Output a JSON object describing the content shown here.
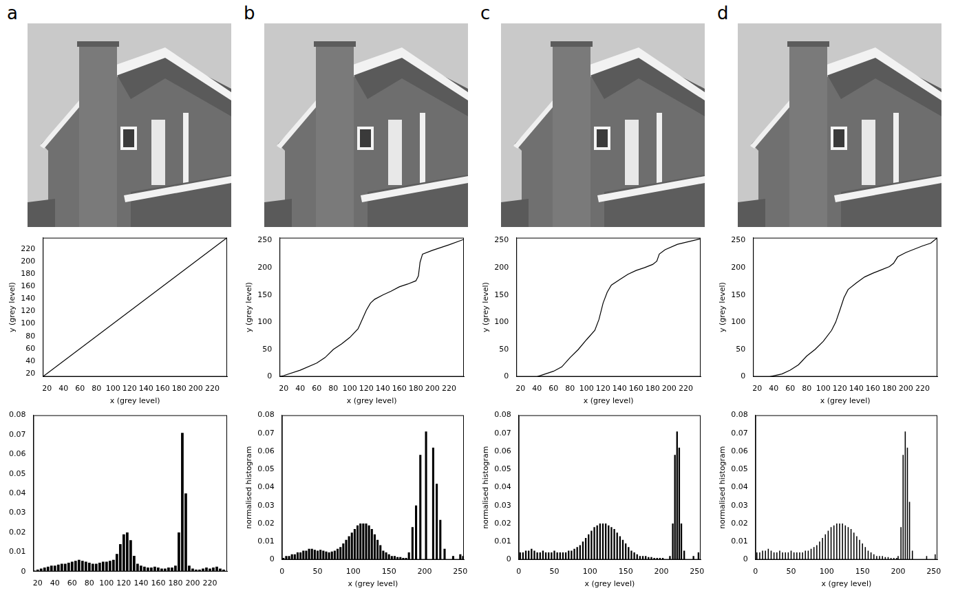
{
  "panel_letters": [
    "a",
    "b",
    "c",
    "d"
  ],
  "chart_data": [
    {
      "type": "line",
      "x": [
        15,
        238
      ],
      "values": [
        15,
        238
      ],
      "color": "#000000",
      "grid": false,
      "x_label": "x (grey level)",
      "y_label": "y (grey level)",
      "xlim": [
        15,
        238
      ],
      "ylim": [
        15,
        238
      ],
      "xticks": [
        20,
        40,
        60,
        80,
        100,
        120,
        140,
        160,
        180,
        200,
        220
      ],
      "yticks": [
        20,
        40,
        60,
        80,
        100,
        120,
        140,
        160,
        180,
        200,
        220
      ]
    },
    {
      "type": "bar",
      "color": "#000000",
      "grid": false,
      "x": [
        16,
        20,
        24,
        28,
        32,
        36,
        40,
        44,
        48,
        52,
        56,
        60,
        64,
        68,
        72,
        76,
        80,
        84,
        88,
        92,
        96,
        100,
        104,
        108,
        112,
        116,
        120,
        124,
        128,
        132,
        136,
        140,
        144,
        148,
        152,
        156,
        160,
        164,
        168,
        172,
        176,
        180,
        184,
        188,
        192,
        196,
        200,
        204,
        208,
        212,
        216,
        220,
        224,
        228,
        232,
        236
      ],
      "values": [
        0.0005,
        0.001,
        0.0015,
        0.002,
        0.0025,
        0.003,
        0.003,
        0.0035,
        0.004,
        0.004,
        0.0045,
        0.005,
        0.0055,
        0.006,
        0.0055,
        0.005,
        0.0045,
        0.004,
        0.004,
        0.0045,
        0.005,
        0.005,
        0.0055,
        0.006,
        0.009,
        0.014,
        0.019,
        0.02,
        0.016,
        0.008,
        0.004,
        0.003,
        0.0025,
        0.002,
        0.002,
        0.0025,
        0.002,
        0.0015,
        0.0015,
        0.002,
        0.002,
        0.003,
        0.02,
        0.071,
        0.04,
        0.003,
        0.0015,
        0.001,
        0.001,
        0.0015,
        0.002,
        0.0015,
        0.002,
        0.0025,
        0.0015,
        0.001
      ],
      "xlim": [
        15,
        240
      ],
      "ylim": [
        0,
        0.08
      ],
      "xticks": [
        20,
        40,
        60,
        80,
        100,
        120,
        140,
        160,
        180,
        200,
        220
      ],
      "yticks": [
        0,
        0.01,
        0.02,
        0.03,
        0.04,
        0.05,
        0.06,
        0.07,
        0.08
      ]
    },
    {
      "type": "line",
      "color": "#000000",
      "grid": false,
      "x_label": "x (grey level)",
      "y_label": "y (grey level)",
      "x": [
        15,
        20,
        40,
        60,
        70,
        80,
        90,
        100,
        110,
        115,
        120,
        125,
        130,
        140,
        150,
        160,
        170,
        180,
        183,
        185,
        188,
        200,
        220,
        238
      ],
      "values": [
        0,
        2,
        12,
        25,
        35,
        50,
        60,
        72,
        88,
        105,
        122,
        135,
        142,
        150,
        157,
        165,
        170,
        176,
        185,
        210,
        225,
        232,
        242,
        252
      ],
      "xlim": [
        15,
        238
      ],
      "ylim": [
        0,
        255
      ],
      "xticks": [
        20,
        40,
        60,
        80,
        100,
        120,
        140,
        160,
        180,
        200,
        220
      ],
      "yticks": [
        0,
        50,
        100,
        150,
        200,
        250
      ]
    },
    {
      "type": "bar",
      "color": "#000000",
      "grid": false,
      "x_label": "x (grey level)",
      "y_label": "normalised histogram",
      "x": [
        2,
        6,
        10,
        14,
        18,
        22,
        26,
        30,
        34,
        38,
        42,
        46,
        50,
        54,
        58,
        62,
        66,
        70,
        74,
        78,
        82,
        86,
        90,
        94,
        98,
        102,
        106,
        110,
        114,
        118,
        122,
        126,
        130,
        134,
        138,
        142,
        146,
        150,
        154,
        158,
        162,
        166,
        170,
        174,
        178,
        183,
        188,
        194,
        202,
        212,
        217,
        222,
        228,
        240,
        250,
        254
      ],
      "values": [
        0.001,
        0.002,
        0.002,
        0.003,
        0.003,
        0.004,
        0.004,
        0.005,
        0.005,
        0.006,
        0.006,
        0.0055,
        0.005,
        0.0055,
        0.005,
        0.0045,
        0.004,
        0.0045,
        0.005,
        0.006,
        0.007,
        0.009,
        0.011,
        0.013,
        0.015,
        0.017,
        0.019,
        0.02,
        0.02,
        0.02,
        0.019,
        0.017,
        0.014,
        0.011,
        0.008,
        0.005,
        0.004,
        0.003,
        0.002,
        0.002,
        0.0015,
        0.0015,
        0.001,
        0.001,
        0.004,
        0.018,
        0.03,
        0.058,
        0.071,
        0.062,
        0.042,
        0.022,
        0.006,
        0.002,
        0.003,
        0.002
      ],
      "xlim": [
        0,
        255
      ],
      "ylim": [
        0,
        0.08
      ],
      "xticks": [
        0,
        50,
        100,
        150,
        200,
        250
      ],
      "yticks": [
        0,
        0.01,
        0.02,
        0.03,
        0.04,
        0.05,
        0.06,
        0.07,
        0.08
      ]
    },
    {
      "type": "line",
      "color": "#000000",
      "grid": false,
      "x_label": "x (grey level)",
      "y_label": "y (grey level)",
      "x": [
        15,
        40,
        50,
        60,
        70,
        80,
        90,
        100,
        110,
        115,
        120,
        125,
        130,
        140,
        150,
        160,
        170,
        180,
        185,
        188,
        195,
        210,
        238
      ],
      "values": [
        0,
        0,
        5,
        10,
        18,
        35,
        50,
        68,
        85,
        105,
        135,
        155,
        168,
        178,
        188,
        195,
        200,
        206,
        212,
        225,
        233,
        243,
        253
      ],
      "xlim": [
        15,
        238
      ],
      "ylim": [
        0,
        255
      ],
      "xticks": [
        20,
        40,
        60,
        80,
        100,
        120,
        140,
        160,
        180,
        200,
        220
      ],
      "yticks": [
        0,
        50,
        100,
        150,
        200,
        250
      ]
    },
    {
      "type": "bar",
      "color": "#000000",
      "grid": false,
      "x_label": "x (grey level)",
      "y_label": "normalised histogram",
      "x": [
        2,
        6,
        10,
        14,
        18,
        22,
        26,
        30,
        34,
        38,
        42,
        46,
        50,
        54,
        58,
        62,
        66,
        70,
        74,
        78,
        82,
        86,
        90,
        94,
        98,
        102,
        106,
        110,
        114,
        118,
        122,
        126,
        130,
        134,
        138,
        142,
        146,
        150,
        154,
        158,
        162,
        166,
        170,
        174,
        178,
        182,
        186,
        190,
        194,
        198,
        202,
        212,
        216,
        219,
        222,
        225,
        228,
        232,
        245,
        252
      ],
      "values": [
        0.004,
        0.004,
        0.005,
        0.005,
        0.006,
        0.005,
        0.004,
        0.004,
        0.005,
        0.004,
        0.004,
        0.004,
        0.005,
        0.004,
        0.004,
        0.004,
        0.004,
        0.005,
        0.005,
        0.006,
        0.007,
        0.008,
        0.01,
        0.012,
        0.014,
        0.016,
        0.018,
        0.019,
        0.02,
        0.02,
        0.02,
        0.019,
        0.018,
        0.017,
        0.015,
        0.013,
        0.011,
        0.009,
        0.007,
        0.005,
        0.004,
        0.003,
        0.002,
        0.002,
        0.002,
        0.0015,
        0.0015,
        0.001,
        0.001,
        0.001,
        0.001,
        0.002,
        0.02,
        0.058,
        0.071,
        0.062,
        0.02,
        0.005,
        0.002,
        0.004
      ],
      "xlim": [
        0,
        255
      ],
      "ylim": [
        0,
        0.08
      ],
      "xticks": [
        0,
        50,
        100,
        150,
        200,
        250
      ],
      "yticks": [
        0,
        0.01,
        0.02,
        0.03,
        0.04,
        0.05,
        0.06,
        0.07,
        0.08
      ]
    },
    {
      "type": "line",
      "color": "#000000",
      "grid": false,
      "x_label": "x (grey level)",
      "y_label": "y (grey level)",
      "x": [
        15,
        35,
        50,
        60,
        70,
        80,
        90,
        100,
        110,
        115,
        120,
        125,
        130,
        140,
        150,
        160,
        170,
        180,
        185,
        190,
        200,
        220,
        230,
        238
      ],
      "values": [
        0,
        0,
        5,
        12,
        22,
        38,
        50,
        65,
        85,
        100,
        122,
        145,
        160,
        172,
        183,
        190,
        196,
        202,
        208,
        220,
        228,
        240,
        245,
        255
      ],
      "xlim": [
        15,
        238
      ],
      "ylim": [
        0,
        255
      ],
      "xticks": [
        20,
        40,
        60,
        80,
        100,
        120,
        140,
        160,
        180,
        200,
        220
      ],
      "yticks": [
        0,
        50,
        100,
        150,
        200,
        250
      ]
    },
    {
      "type": "bar",
      "color": "#000000",
      "grid": false,
      "x_label": "x (grey level)",
      "y_label": "normalised histogram",
      "x": [
        2,
        6,
        10,
        14,
        18,
        22,
        26,
        30,
        34,
        38,
        42,
        46,
        50,
        54,
        58,
        62,
        66,
        70,
        74,
        78,
        82,
        86,
        90,
        94,
        98,
        102,
        106,
        110,
        114,
        118,
        122,
        126,
        130,
        134,
        138,
        142,
        146,
        150,
        154,
        158,
        162,
        166,
        170,
        174,
        178,
        182,
        186,
        190,
        194,
        198,
        200,
        204,
        207,
        210,
        213,
        216,
        220,
        240,
        252
      ],
      "values": [
        0.004,
        0.004,
        0.005,
        0.005,
        0.006,
        0.005,
        0.004,
        0.004,
        0.005,
        0.004,
        0.004,
        0.004,
        0.005,
        0.004,
        0.004,
        0.004,
        0.004,
        0.005,
        0.005,
        0.006,
        0.007,
        0.008,
        0.01,
        0.012,
        0.014,
        0.016,
        0.018,
        0.019,
        0.02,
        0.02,
        0.02,
        0.019,
        0.018,
        0.017,
        0.015,
        0.013,
        0.011,
        0.009,
        0.007,
        0.005,
        0.004,
        0.003,
        0.002,
        0.002,
        0.002,
        0.0015,
        0.0015,
        0.001,
        0.001,
        0.001,
        0.002,
        0.018,
        0.058,
        0.071,
        0.062,
        0.032,
        0.005,
        0.002,
        0.003
      ],
      "xlim": [
        0,
        255
      ],
      "ylim": [
        0,
        0.08
      ],
      "xticks": [
        0,
        50,
        100,
        150,
        200,
        250
      ],
      "yticks": [
        0,
        0.01,
        0.02,
        0.03,
        0.04,
        0.05,
        0.06,
        0.07,
        0.08
      ]
    }
  ]
}
